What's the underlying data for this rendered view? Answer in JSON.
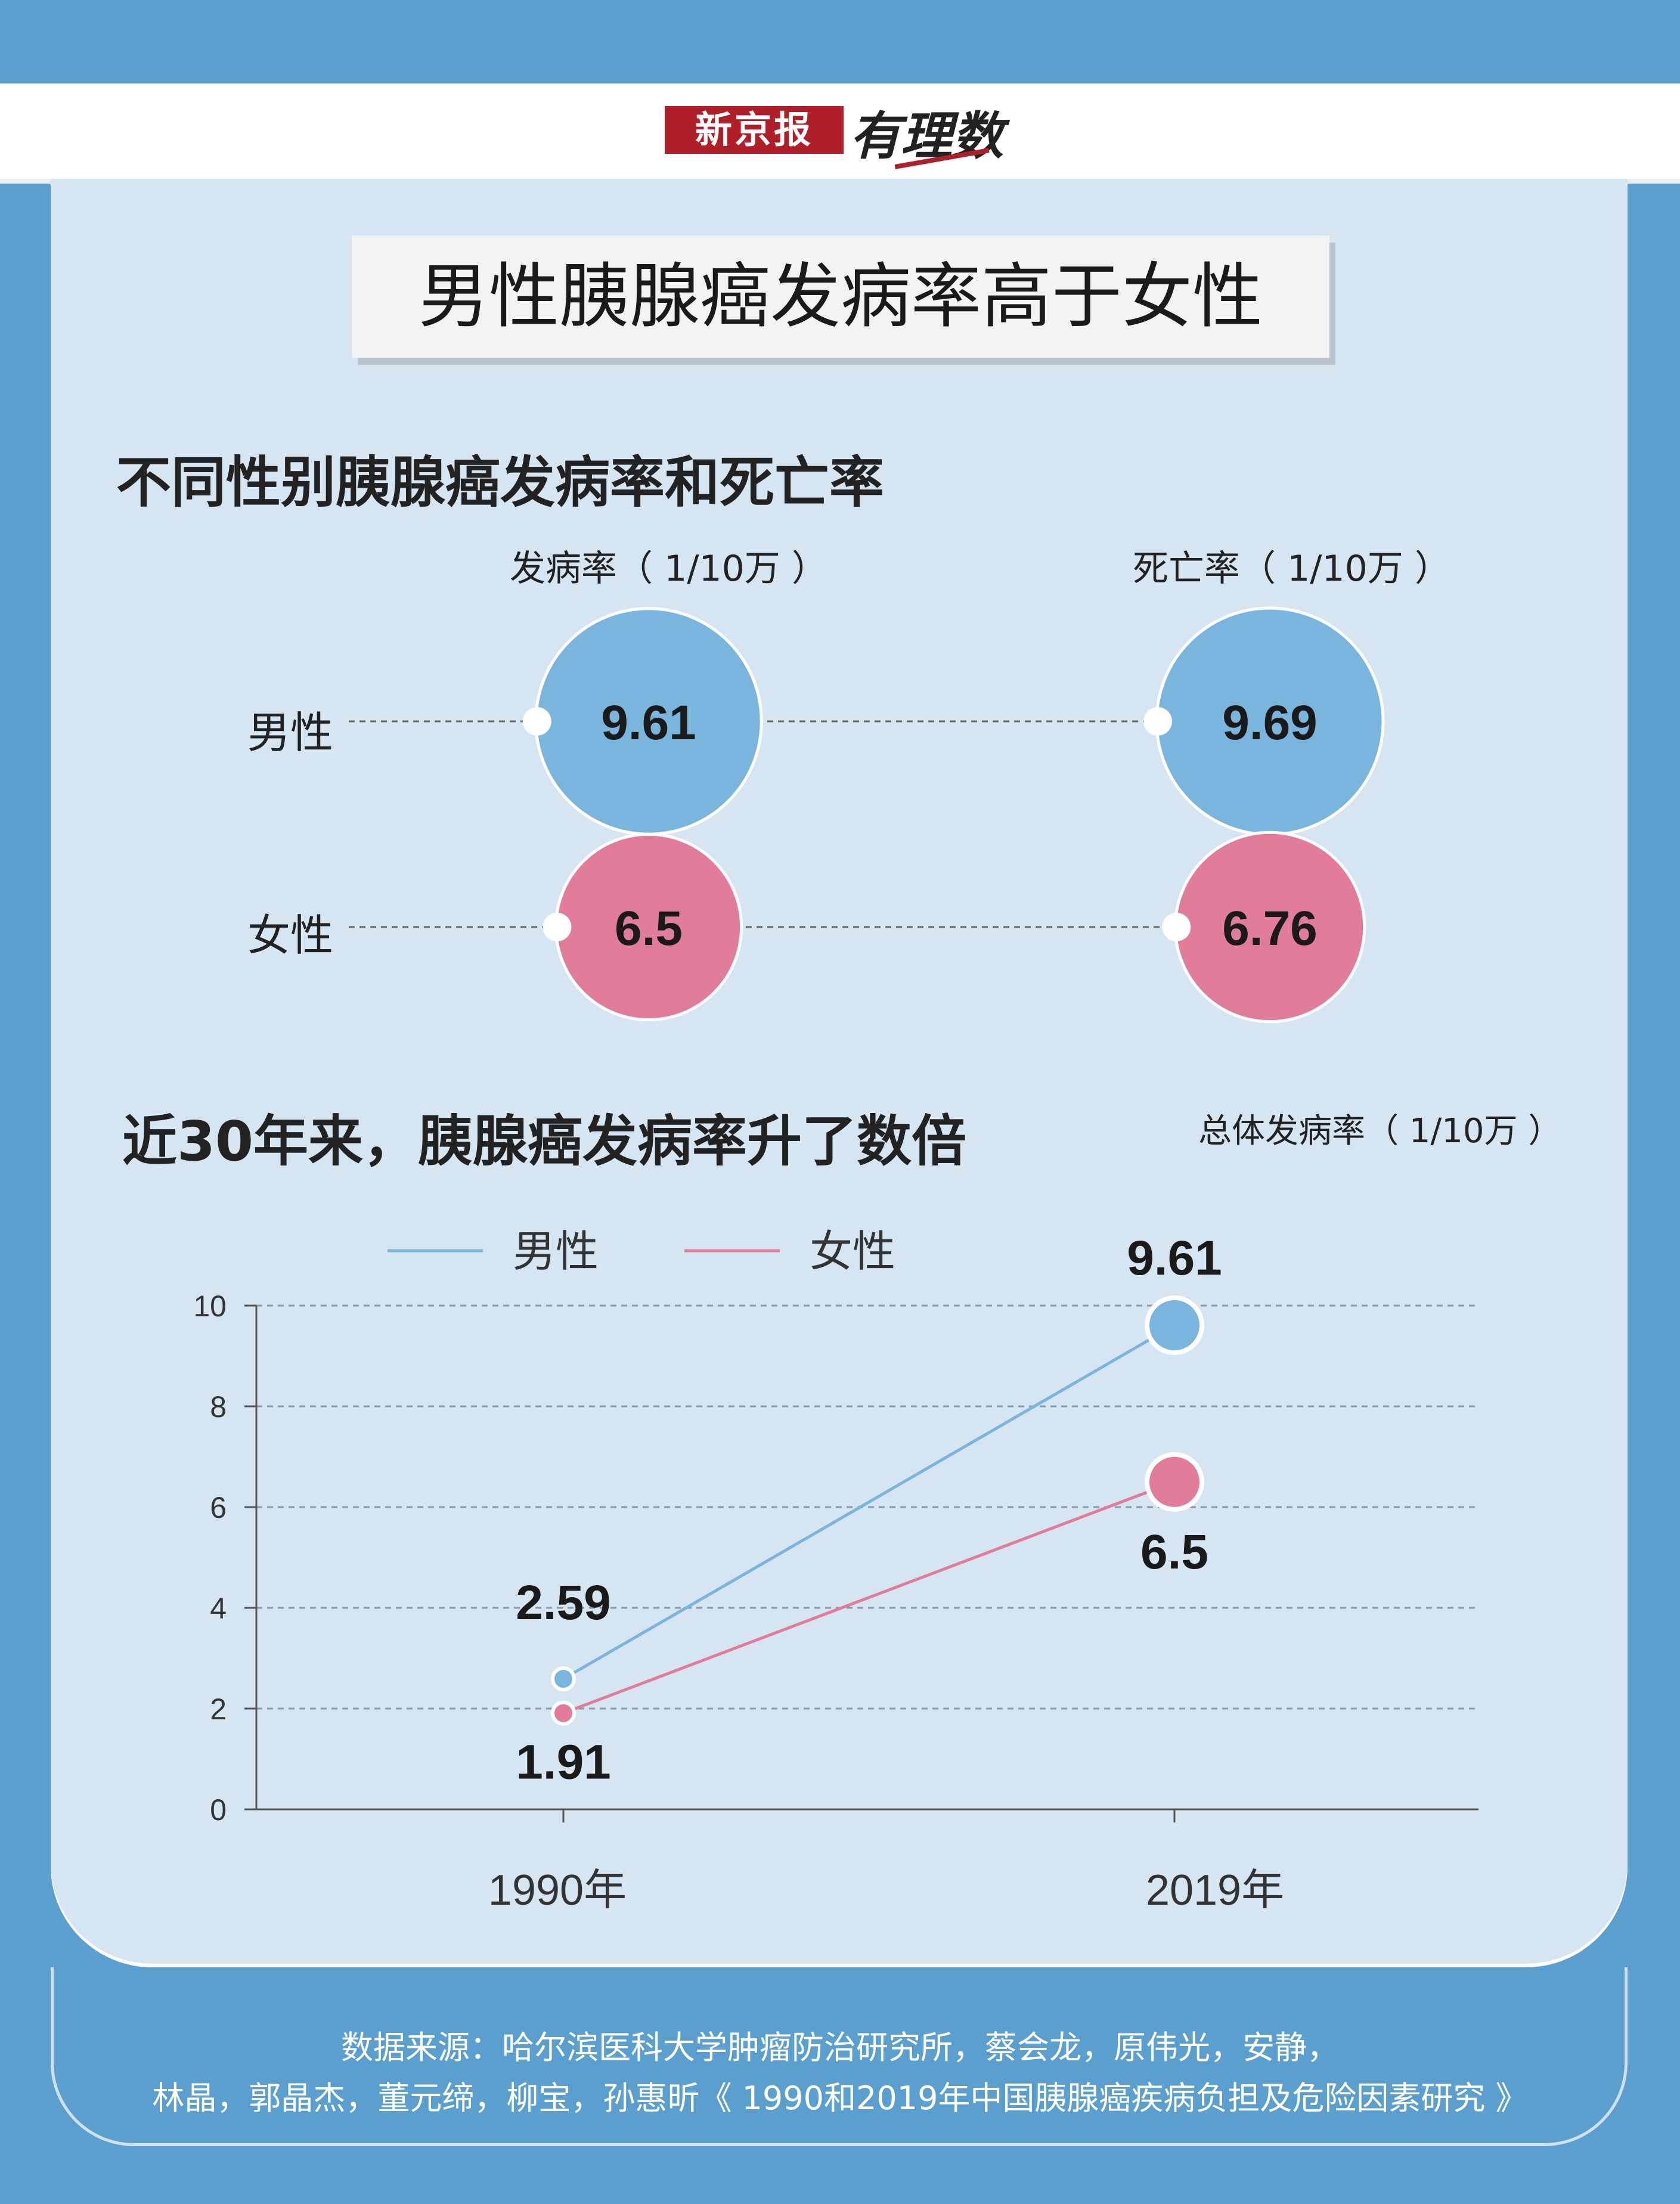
{
  "header": {
    "logo_text": "新京报",
    "logo_script": "有理数"
  },
  "title": "男性胰腺癌发病率高于女性",
  "section1": {
    "title": "不同性别胰腺癌发病率和死亡率",
    "incidence_label": "发病率（ 1/10万 ）",
    "mortality_label": "死亡率（ 1/10万 ）",
    "rows": [
      {
        "label": "男性",
        "incidence": "9.61",
        "mortality": "9.69"
      },
      {
        "label": "女性",
        "incidence": "6.5",
        "mortality": "6.76"
      }
    ]
  },
  "section2": {
    "title": "近30年来，胰腺癌发病率升了数倍",
    "unit": "总体发病率（ 1/10万 ）"
  },
  "footer": {
    "line1": "数据来源：哈尔滨医科大学肿瘤防治研究所，蔡会龙，原伟光，安静，",
    "line2": "林晶，郭晶杰，董元缔，柳宝，孙惠昕《 1990和2019年中国胰腺癌疾病负担及危险因素研究 》"
  },
  "colors": {
    "male": "#7ab5dd",
    "female": "#e27c9b",
    "background": "#5b9fce",
    "card": "#d6e5f2"
  },
  "chart_data": [
    {
      "type": "bubble",
      "columns": [
        "发病率（ 1/10万 ）",
        "死亡率（ 1/10万 ）"
      ],
      "series": [
        {
          "name": "男性",
          "values": [
            9.61,
            9.69
          ]
        },
        {
          "name": "女性",
          "values": [
            6.5,
            6.76
          ]
        }
      ]
    },
    {
      "type": "line",
      "x": [
        "1990年",
        "2019年"
      ],
      "series": [
        {
          "name": "男性",
          "values": [
            2.59,
            9.61
          ]
        },
        {
          "name": "女性",
          "values": [
            1.91,
            6.5
          ]
        }
      ],
      "ylim": [
        0,
        10
      ],
      "yticks": [
        0,
        2,
        4,
        6,
        8,
        10
      ],
      "ylabel": "总体发病率（ 1/10万 ）",
      "grid": true,
      "legend": "top"
    }
  ]
}
